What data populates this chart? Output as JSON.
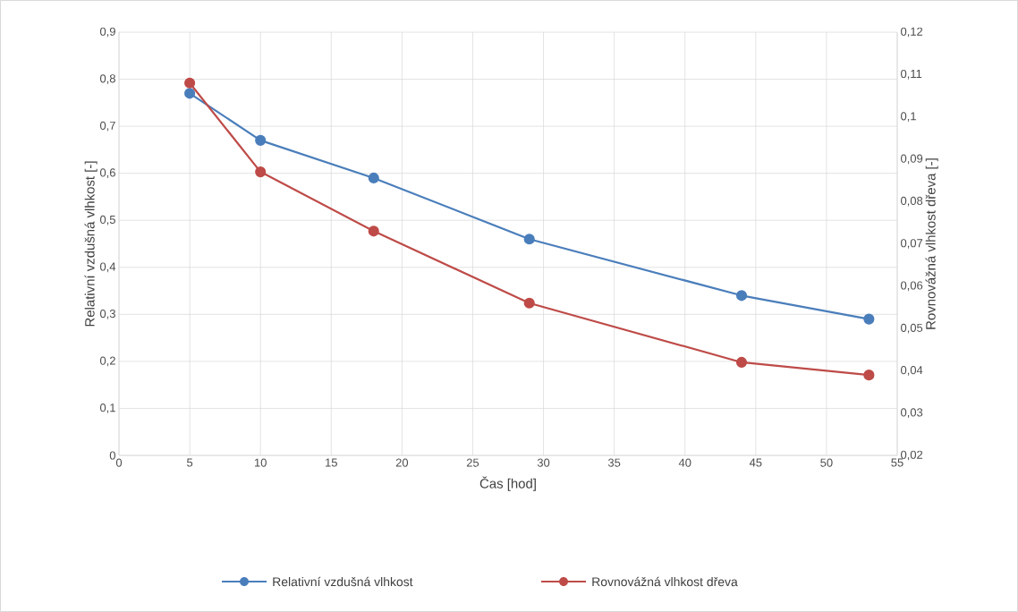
{
  "chart_data": {
    "type": "line",
    "xlabel": "Čas [hod]",
    "ylabel": "Relativní vzdušná vlhkost [-]",
    "y2label": "Rovnovážná vlhkost dřeva [-]",
    "x": [
      5,
      10,
      18,
      29,
      44,
      53
    ],
    "series": [
      {
        "name": "Relativní vzdušná vlhkost",
        "color": "#4a7ebb",
        "values": [
          0.77,
          0.67,
          0.59,
          0.46,
          0.34,
          0.29
        ]
      },
      {
        "name": "Rovnovážná vlhkost dřeva",
        "color": "#be4b48",
        "axis": "y2",
        "values": [
          0.108,
          0.087,
          0.073,
          0.056,
          0.042,
          0.039
        ]
      }
    ],
    "xlim": [
      0,
      55
    ],
    "xticks": [
      0,
      5,
      10,
      15,
      20,
      25,
      30,
      35,
      40,
      45,
      50,
      55
    ],
    "ylim": [
      0,
      0.9
    ],
    "yticks": [
      0,
      {
        "value": 0.1,
        "label": "0,1"
      },
      {
        "value": 0.2,
        "label": "0,2"
      },
      {
        "value": 0.3,
        "label": "0,3"
      },
      {
        "value": 0.4,
        "label": "0,4"
      },
      {
        "value": 0.5,
        "label": "0,5"
      },
      {
        "value": 0.6,
        "label": "0,6"
      },
      {
        "value": 0.7,
        "label": "0,7"
      },
      {
        "value": 0.8,
        "label": "0,8"
      },
      {
        "value": 0.9,
        "label": "0,9"
      }
    ],
    "y2lim": [
      0.02,
      0.12
    ],
    "y2ticks": [
      {
        "value": 0.02,
        "label": "0,02"
      },
      {
        "value": 0.03,
        "label": "0,03"
      },
      {
        "value": 0.04,
        "label": "0,04"
      },
      {
        "value": 0.05,
        "label": "0,05"
      },
      {
        "value": 0.06,
        "label": "0,06"
      },
      {
        "value": 0.07,
        "label": "0,07"
      },
      {
        "value": 0.08,
        "label": "0,08"
      },
      {
        "value": 0.09,
        "label": "0,09"
      },
      {
        "value": 0.1,
        "label": "0,1"
      },
      {
        "value": 0.11,
        "label": "0,11"
      },
      {
        "value": 0.12,
        "label": "0,12"
      }
    ],
    "grid": true,
    "legend": "bottom",
    "marker": "circle",
    "line_style": "solid"
  }
}
